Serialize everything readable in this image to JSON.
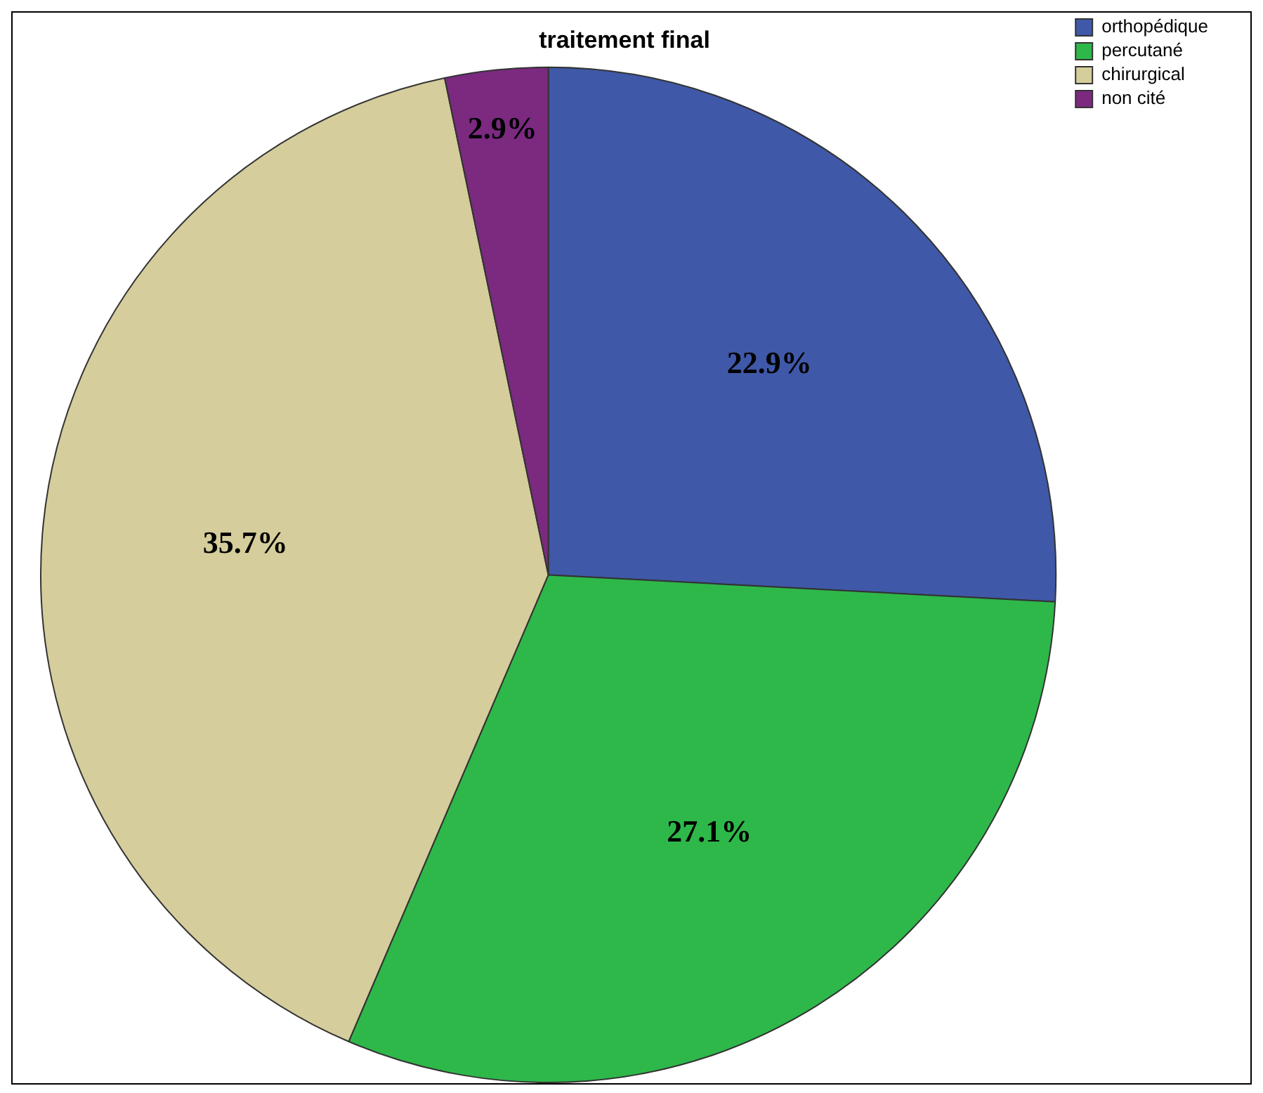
{
  "chart_data": {
    "type": "pie",
    "title": "traitement final",
    "categories": [
      "orthopédique",
      "percutané",
      "chirurgical",
      "non cité"
    ],
    "values": [
      22.9,
      27.1,
      35.7,
      2.9
    ],
    "colors": [
      "#3f58a8",
      "#2eb84a",
      "#d5cd9b",
      "#7b2a80"
    ],
    "value_labels": [
      "22.9%",
      "27.1%",
      "35.7%",
      "2.9%"
    ],
    "legend": "top right"
  }
}
